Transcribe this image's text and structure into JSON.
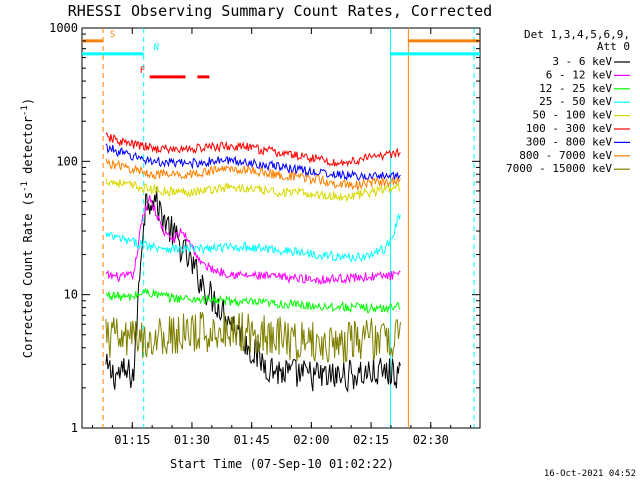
{
  "chart_data": {
    "type": "line",
    "title": "RHESSI Observing Summary Count Rates, Corrected",
    "xlabel": "Start Time (07-Sep-10 01:02:22)",
    "ylabel_text": "Corrected Count Rate (s",
    "ylabel_sup1": "-1",
    "ylabel_mid": " detector",
    "ylabel_sup2": "-1",
    "ylabel_end": ")",
    "x_unit": "minutes since 01:02:22",
    "xlim": [
      0,
      100
    ],
    "x_ticks": [
      {
        "label": "01:15",
        "value": 12.63
      },
      {
        "label": "01:30",
        "value": 27.63
      },
      {
        "label": "01:45",
        "value": 42.63
      },
      {
        "label": "02:00",
        "value": 57.63
      },
      {
        "label": "02:15",
        "value": 72.63
      },
      {
        "label": "02:30",
        "value": 87.63
      }
    ],
    "y_scale": "log",
    "ylim": [
      1,
      1000
    ],
    "y_ticks": [
      {
        "label": "1",
        "value": 1
      },
      {
        "label": "10",
        "value": 10
      },
      {
        "label": "100",
        "value": 100
      },
      {
        "label": "1000",
        "value": 1000
      }
    ],
    "legend_placement": "right",
    "legend_header_1": "Det 1,3,4,5,6,9,",
    "legend_header_2": "Att 0",
    "series": [
      {
        "name": "3 - 6 keV",
        "color": "#000000",
        "points": [
          [
            6,
            2.8
          ],
          [
            8,
            2.5
          ],
          [
            10,
            2.6
          ],
          [
            13,
            2.5
          ],
          [
            15,
            25
          ],
          [
            16,
            50
          ],
          [
            18,
            55
          ],
          [
            20,
            40
          ],
          [
            23,
            28
          ],
          [
            26,
            20
          ],
          [
            29,
            14
          ],
          [
            32,
            10
          ],
          [
            35,
            8
          ],
          [
            38,
            6
          ],
          [
            40,
            5
          ],
          [
            42,
            4
          ],
          [
            46,
            3
          ],
          [
            50,
            2.6
          ],
          [
            56,
            2.5
          ],
          [
            62,
            2.4
          ],
          [
            68,
            2.5
          ],
          [
            74,
            2.6
          ],
          [
            80,
            2.6
          ]
        ]
      },
      {
        "name": "6 - 12 keV",
        "color": "#ff00ff",
        "points": [
          [
            6,
            14
          ],
          [
            10,
            13.5
          ],
          [
            13,
            14
          ],
          [
            15,
            35
          ],
          [
            17,
            55
          ],
          [
            19,
            38
          ],
          [
            21,
            28
          ],
          [
            23,
            26
          ],
          [
            25,
            30
          ],
          [
            27,
            25
          ],
          [
            30,
            17
          ],
          [
            34,
            15
          ],
          [
            40,
            14
          ],
          [
            50,
            13.5
          ],
          [
            60,
            13
          ],
          [
            70,
            13.5
          ],
          [
            80,
            14
          ]
        ]
      },
      {
        "name": "12 - 25 keV",
        "color": "#00ff00",
        "points": [
          [
            6,
            10
          ],
          [
            12,
            9.5
          ],
          [
            16,
            10.5
          ],
          [
            22,
            9.5
          ],
          [
            30,
            9.2
          ],
          [
            40,
            8.8
          ],
          [
            50,
            8.5
          ],
          [
            60,
            8.2
          ],
          [
            70,
            8
          ],
          [
            76,
            7.8
          ],
          [
            80,
            8.5
          ]
        ]
      },
      {
        "name": "25 - 50 keV",
        "color": "#00ffff",
        "points": [
          [
            6,
            28
          ],
          [
            12,
            25
          ],
          [
            18,
            23
          ],
          [
            24,
            22
          ],
          [
            30,
            22
          ],
          [
            40,
            23
          ],
          [
            50,
            21.5
          ],
          [
            60,
            20
          ],
          [
            66,
            19
          ],
          [
            72,
            19.5
          ],
          [
            76,
            22
          ],
          [
            78,
            27
          ],
          [
            80,
            42
          ]
        ]
      },
      {
        "name": "50 - 100 keV",
        "color": "#d8d800",
        "points": [
          [
            6,
            72
          ],
          [
            12,
            66
          ],
          [
            18,
            61
          ],
          [
            24,
            59
          ],
          [
            30,
            60
          ],
          [
            36,
            64
          ],
          [
            42,
            62
          ],
          [
            48,
            59
          ],
          [
            54,
            58
          ],
          [
            60,
            56
          ],
          [
            66,
            54
          ],
          [
            72,
            58
          ],
          [
            76,
            62
          ],
          [
            80,
            63
          ]
        ]
      },
      {
        "name": "100 - 300 keV",
        "color": "#ff0000",
        "points": [
          [
            6,
            152
          ],
          [
            12,
            135
          ],
          [
            18,
            125
          ],
          [
            24,
            122
          ],
          [
            30,
            126
          ],
          [
            36,
            130
          ],
          [
            42,
            127
          ],
          [
            48,
            118
          ],
          [
            54,
            110
          ],
          [
            60,
            104
          ],
          [
            64,
            96
          ],
          [
            68,
            100
          ],
          [
            72,
            106
          ],
          [
            76,
            112
          ],
          [
            80,
            118
          ]
        ]
      },
      {
        "name": "300 - 800 keV",
        "color": "#0000ff",
        "points": [
          [
            6,
            128
          ],
          [
            12,
            110
          ],
          [
            18,
            100
          ],
          [
            24,
            96
          ],
          [
            30,
            98
          ],
          [
            36,
            102
          ],
          [
            42,
            98
          ],
          [
            48,
            92
          ],
          [
            54,
            87
          ],
          [
            60,
            82
          ],
          [
            66,
            78
          ],
          [
            72,
            77
          ],
          [
            76,
            77
          ],
          [
            80,
            78
          ]
        ]
      },
      {
        "name": "800 - 7000 keV",
        "color": "#ff8000",
        "points": [
          [
            6,
            98
          ],
          [
            12,
            88
          ],
          [
            18,
            80
          ],
          [
            24,
            79
          ],
          [
            30,
            82
          ],
          [
            36,
            88
          ],
          [
            42,
            86
          ],
          [
            48,
            80
          ],
          [
            54,
            76
          ],
          [
            60,
            72
          ],
          [
            64,
            68
          ],
          [
            68,
            66
          ],
          [
            72,
            68
          ],
          [
            76,
            70
          ],
          [
            80,
            72
          ]
        ]
      },
      {
        "name": "7000 - 15000 keV",
        "color": "#808000",
        "points": [
          [
            6,
            4.8
          ],
          [
            12,
            4.6
          ],
          [
            18,
            4.7
          ],
          [
            24,
            5
          ],
          [
            30,
            5.2
          ],
          [
            36,
            5.5
          ],
          [
            42,
            5.3
          ],
          [
            48,
            5
          ],
          [
            54,
            4.5
          ],
          [
            60,
            4.3
          ],
          [
            66,
            4.4
          ],
          [
            72,
            4.7
          ],
          [
            76,
            4.6
          ],
          [
            80,
            4.8
          ]
        ]
      }
    ],
    "vertical_markers": [
      {
        "x": 5.3,
        "color": "#ff8000",
        "dash": true
      },
      {
        "x": 15.5,
        "color": "#00ffff",
        "dash": true
      },
      {
        "x": 77.5,
        "color": "#00ffff",
        "dash": false
      },
      {
        "x": 82,
        "color": "#ff8000",
        "dash": false
      },
      {
        "x": 98.5,
        "color": "#00ffff",
        "dash": true
      }
    ],
    "state_bars": [
      {
        "label": "S",
        "color": "#ff8000",
        "label_x": 7,
        "level": 800,
        "segments": [
          [
            0,
            5.3
          ],
          [
            82,
            100
          ]
        ]
      },
      {
        "label": "N",
        "color": "#00ffff",
        "label_x": 18,
        "level": 640,
        "segments": [
          [
            0,
            15.5
          ],
          [
            77.5,
            100
          ]
        ]
      },
      {
        "label": "F",
        "color": "#ff0000",
        "label_x": 14.5,
        "level": 430,
        "segments": [
          [
            17,
            26
          ],
          [
            29,
            32
          ]
        ]
      }
    ],
    "footer_date": "16-Oct-2021 04:52"
  }
}
